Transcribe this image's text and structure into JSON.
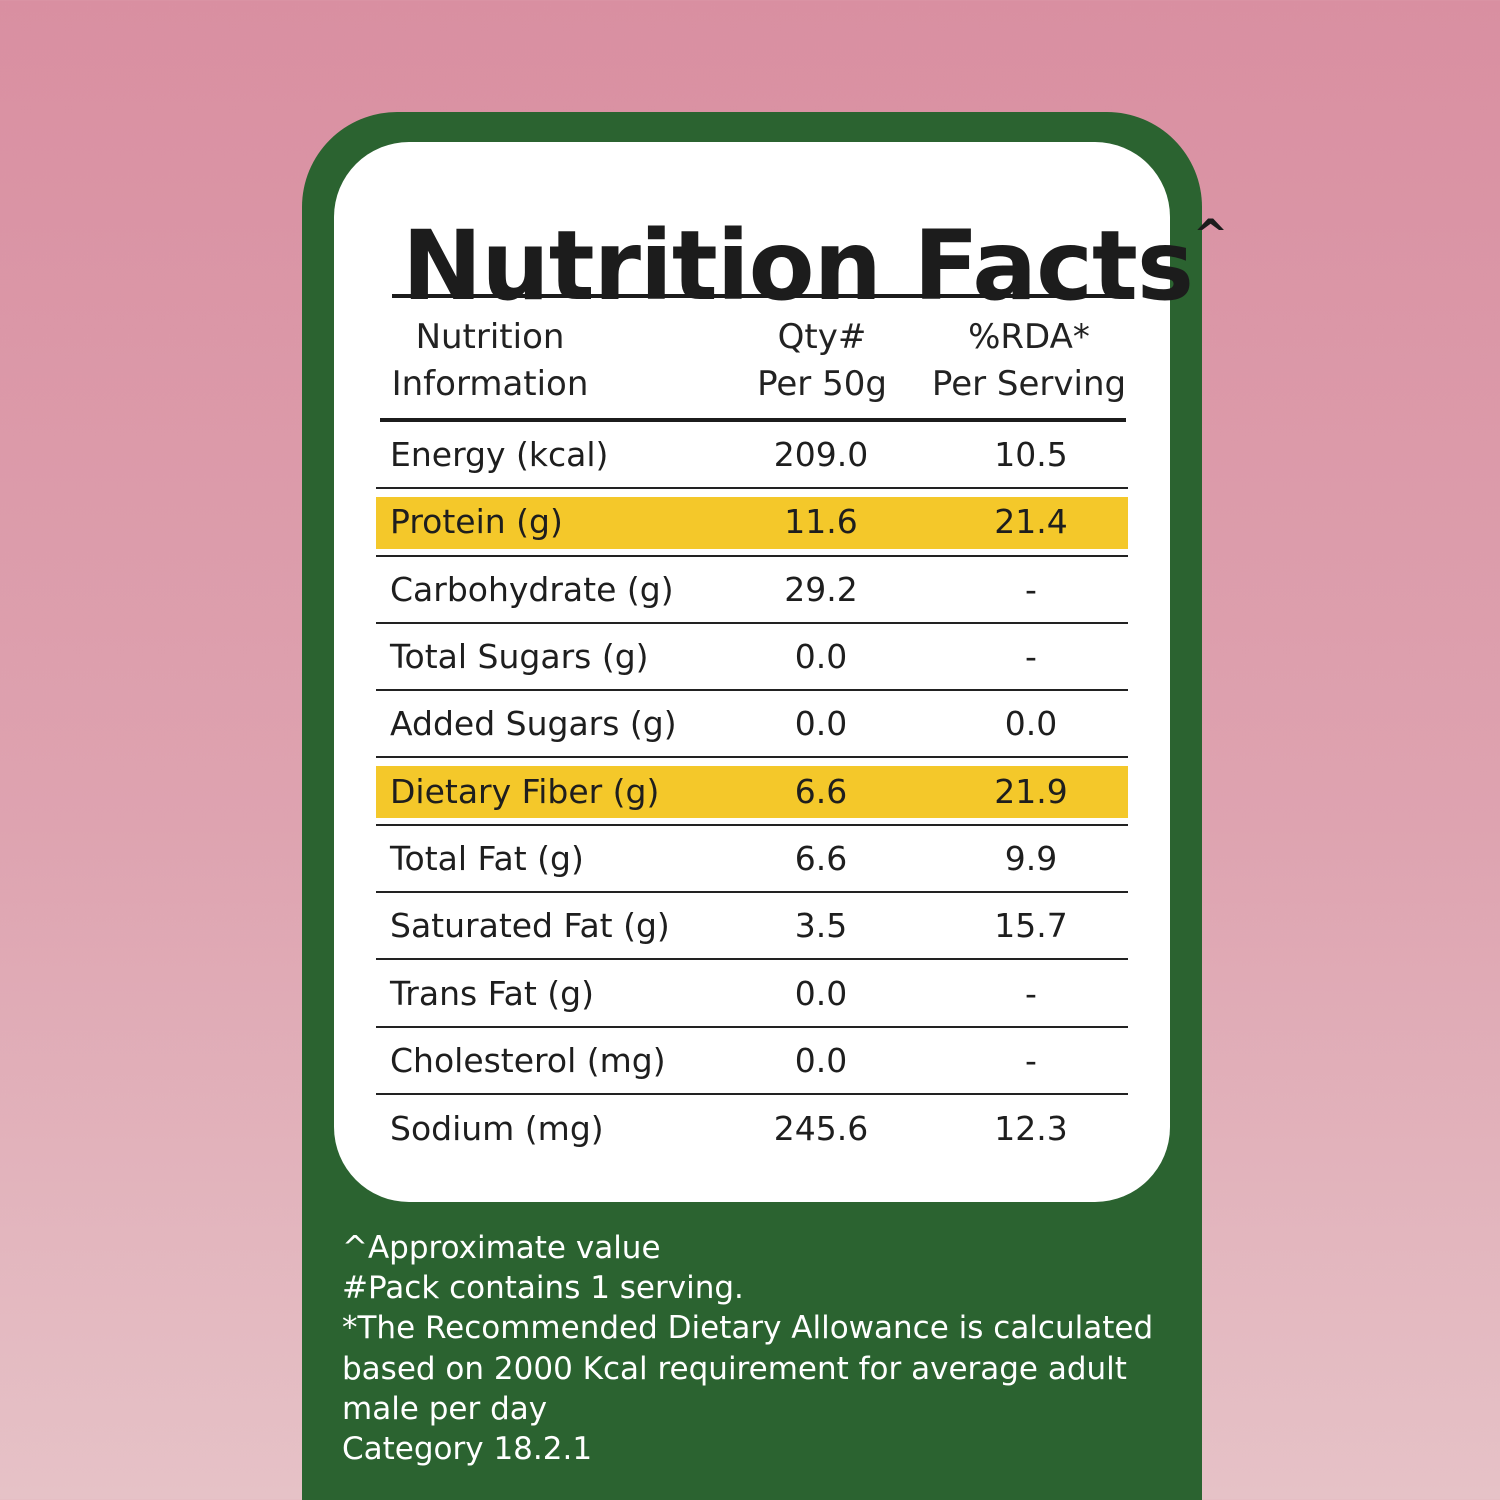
{
  "title": "Nutrition Facts",
  "title_mark": "^",
  "headers": {
    "col1": [
      "Nutrition",
      "Information"
    ],
    "col2": [
      "Qty#",
      "Per 50g"
    ],
    "col3": [
      "%RDA*",
      "Per Serving"
    ]
  },
  "rows": [
    {
      "name": "Energy (kcal)",
      "qty": "209.0",
      "rda": "10.5",
      "highlight": false
    },
    {
      "name": "Protein (g)",
      "qty": "11.6",
      "rda": "21.4",
      "highlight": true
    },
    {
      "name": "Carbohydrate (g)",
      "qty": "29.2",
      "rda": "-",
      "highlight": false
    },
    {
      "name": "Total Sugars (g)",
      "qty": "0.0",
      "rda": "-",
      "highlight": false
    },
    {
      "name": "Added Sugars (g)",
      "qty": "0.0",
      "rda": "0.0",
      "highlight": false
    },
    {
      "name": "Dietary Fiber (g)",
      "qty": "6.6",
      "rda": "21.9",
      "highlight": true
    },
    {
      "name": "Total Fat (g)",
      "qty": "6.6",
      "rda": "9.9",
      "highlight": false
    },
    {
      "name": "Saturated Fat (g)",
      "qty": "3.5",
      "rda": "15.7",
      "highlight": false
    },
    {
      "name": "Trans Fat (g)",
      "qty": "0.0",
      "rda": "-",
      "highlight": false
    },
    {
      "name": "Cholesterol (mg)",
      "qty": "0.0",
      "rda": "-",
      "highlight": false
    },
    {
      "name": "Sodium (mg)",
      "qty": "245.6",
      "rda": "12.3",
      "highlight": false
    }
  ],
  "notes": [
    "^Approximate value",
    "#Pack contains 1 serving.",
    "*The Recommended Dietary Allowance is calculated",
    "based on 2000 Kcal requirement for average adult",
    "male per day",
    "Category 18.2.1"
  ],
  "colors": {
    "panel": "#2b6330",
    "highlight": "#f4c82a",
    "background": "#d98fa1"
  }
}
